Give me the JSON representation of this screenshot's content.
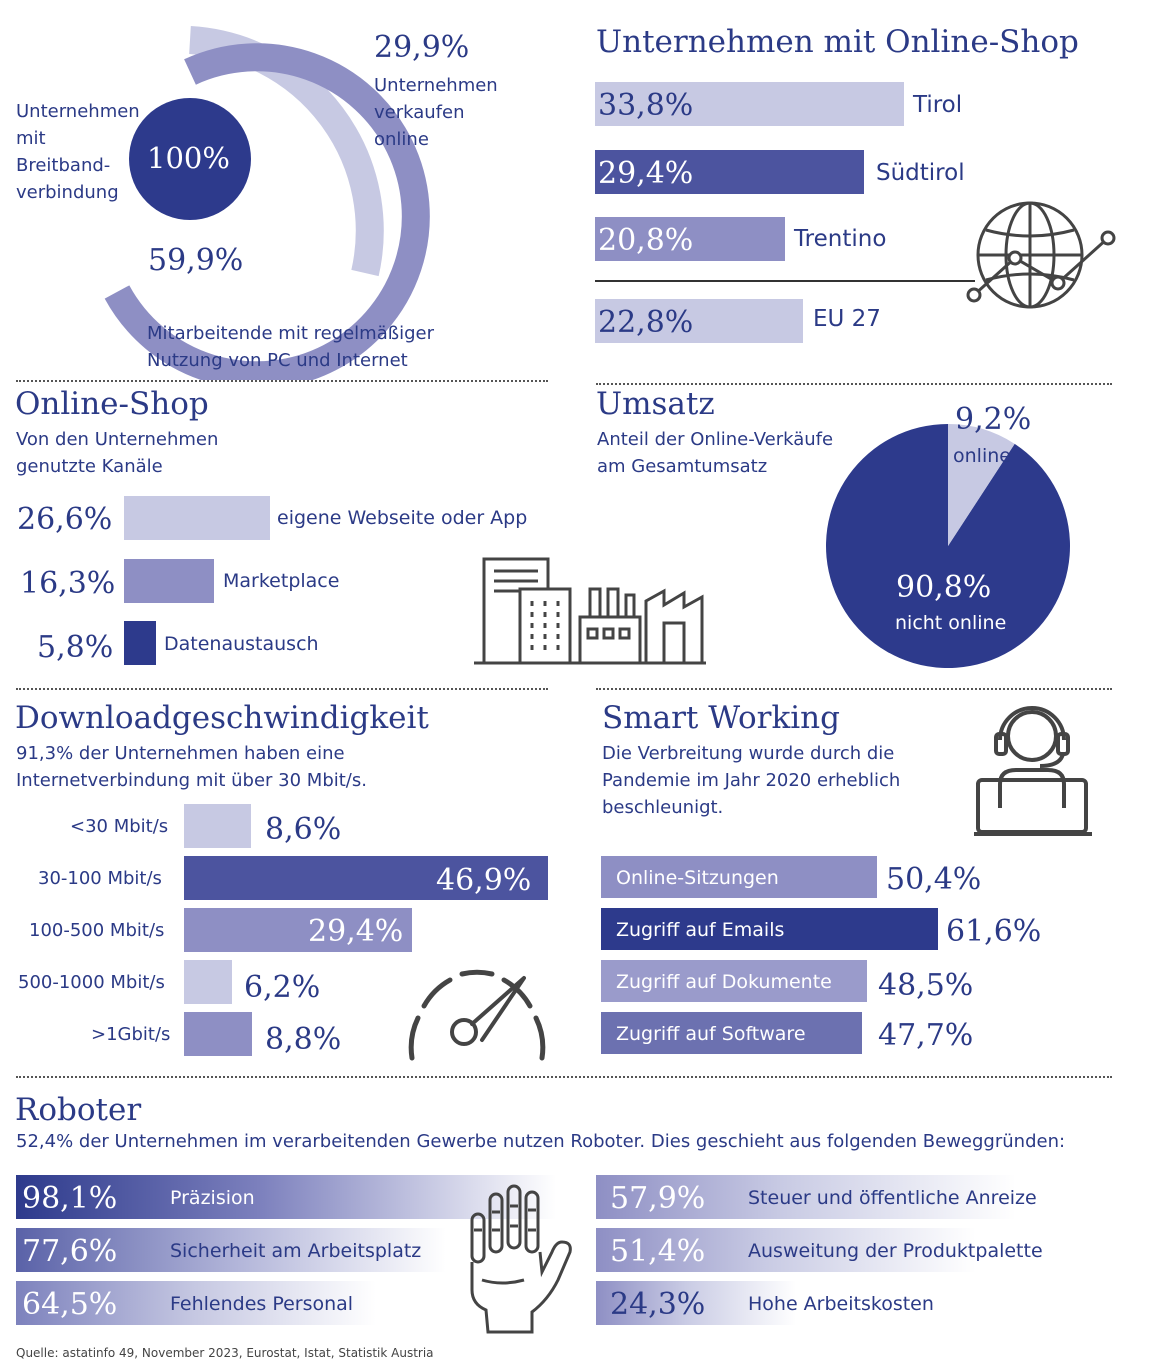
{
  "colors": {
    "navy": "#2d3a8c",
    "mid": "#4c549f",
    "lavender": "#8e8fc4",
    "light": "#c7c9e3",
    "text": "#2b3a86"
  },
  "broadband": {
    "center_value": "100%",
    "center_label": "Unternehmen mit Breitband-verbindung",
    "outer_value": "29,9%",
    "outer_label": "Unternehmen verkaufen online",
    "inner_value": "59,9%",
    "inner_label": "Mitarbeitende mit regelmäßiger Nutzung von PC und Internet"
  },
  "onlineshop_regions": {
    "title": "Unternehmen mit Online-Shop",
    "items": [
      {
        "label": "Tirol",
        "value_text": "33,8%"
      },
      {
        "label": "Südtirol",
        "value_text": "29,4%"
      },
      {
        "label": "Trentino",
        "value_text": "20,8%"
      },
      {
        "label": "EU 27",
        "value_text": "22,8%"
      }
    ],
    "icon": "globe-network-icon"
  },
  "channels": {
    "title": "Online-Shop",
    "subtitle": "Von den Unternehmen genutzte Kanäle",
    "items": [
      {
        "label": "eigene Webseite oder App",
        "value_text": "26,6%"
      },
      {
        "label": "Marketplace",
        "value_text": "16,3%"
      },
      {
        "label": "Datenaustausch",
        "value_text": "5,8%"
      }
    ],
    "icon": "factory-buildings-icon"
  },
  "umsatz": {
    "title": "Umsatz",
    "subtitle": "Anteil der Online-Verkäufe am Gesamtumsatz",
    "online_value": "9,2%",
    "online_label": "online",
    "offline_value": "90,8%",
    "offline_label": "nicht online"
  },
  "download": {
    "title": "Downloadgeschwindigkeit",
    "subtitle": "91,3% der Unternehmen haben eine Internetverbindung mit über 30 Mbit/s.",
    "items": [
      {
        "label": "<30 Mbit/s",
        "value_text": "8,6%"
      },
      {
        "label": "30-100 Mbit/s",
        "value_text": "46,9%"
      },
      {
        "label": "100-500 Mbit/s",
        "value_text": "29,4%"
      },
      {
        "label": "500-1000 Mbit/s",
        "value_text": "6,2%"
      },
      {
        "label": ">1Gbit/s",
        "value_text": "8,8%"
      }
    ],
    "icon": "speedometer-icon"
  },
  "smart": {
    "title": "Smart Working",
    "subtitle": "Die Verbreitung wurde durch die Pandemie im Jahr 2020 erheblich beschleunigt.",
    "items": [
      {
        "label": "Online-Sitzungen",
        "value_text": "50,4%"
      },
      {
        "label": "Zugriff auf Emails",
        "value_text": "61,6%"
      },
      {
        "label": "Zugriff auf Dokumente",
        "value_text": "48,5%"
      },
      {
        "label": "Zugriff auf Software",
        "value_text": "47,7%"
      }
    ],
    "icon": "headset-laptop-icon"
  },
  "robots": {
    "title": "Roboter",
    "subtitle": "52,4% der Unternehmen im verarbeitenden Gewerbe nutzen Roboter. Dies geschieht aus folgenden Beweggründen:",
    "left": [
      {
        "label": "Präzision",
        "value_text": "98,1%"
      },
      {
        "label": "Sicherheit am Arbeitsplatz",
        "value_text": "77,6%"
      },
      {
        "label": "Fehlendes Personal",
        "value_text": "64,5%"
      }
    ],
    "right": [
      {
        "label": "Steuer und öffentliche Anreize",
        "value_text": "57,9%"
      },
      {
        "label": "Ausweitung der Produktpalette",
        "value_text": "51,4%"
      },
      {
        "label": "Hohe Arbeitskosten",
        "value_text": "24,3%"
      }
    ],
    "icon": "robot-hand-icon"
  },
  "source": "Quelle: astatinfo 49, November 2023, Eurostat, Istat, Statistik Austria",
  "chart_data": [
    {
      "type": "pie",
      "labels": [
        "Unternehmen mit Breitband-verbindung",
        "Unternehmen verkaufen online",
        "Mitarbeitende mit regelmäßiger Nutzung von PC und Internet"
      ],
      "values": [
        100,
        29.9,
        59.9
      ]
    },
    {
      "type": "bar",
      "title": "Unternehmen mit Online-Shop",
      "categories": [
        "Tirol",
        "Südtirol",
        "Trentino",
        "EU 27"
      ],
      "values": [
        33.8,
        29.4,
        20.8,
        22.8
      ]
    },
    {
      "type": "bar",
      "title": "Online-Shop",
      "categories": [
        "eigene Webseite oder App",
        "Marketplace",
        "Datenaustausch"
      ],
      "values": [
        26.6,
        16.3,
        5.8
      ]
    },
    {
      "type": "pie",
      "title": "Umsatz",
      "categories": [
        "online",
        "nicht online"
      ],
      "values": [
        9.2,
        90.8
      ]
    },
    {
      "type": "bar",
      "title": "Downloadgeschwindigkeit",
      "categories": [
        "<30 Mbit/s",
        "30-100 Mbit/s",
        "100-500 Mbit/s",
        "500-1000 Mbit/s",
        ">1Gbit/s"
      ],
      "values": [
        8.6,
        46.9,
        29.4,
        6.2,
        8.8
      ]
    },
    {
      "type": "bar",
      "title": "Smart Working",
      "categories": [
        "Online-Sitzungen",
        "Zugriff auf Emails",
        "Zugriff auf Dokumente",
        "Zugriff auf Software"
      ],
      "values": [
        50.4,
        61.6,
        48.5,
        47.7
      ]
    },
    {
      "type": "bar",
      "title": "Roboter",
      "categories": [
        "Präzision",
        "Sicherheit am Arbeitsplatz",
        "Fehlendes Personal",
        "Steuer und öffentliche Anreize",
        "Ausweitung der Produktpalette",
        "Hohe Arbeitskosten"
      ],
      "values": [
        98.1,
        77.6,
        64.5,
        57.9,
        51.4,
        24.3
      ]
    }
  ]
}
